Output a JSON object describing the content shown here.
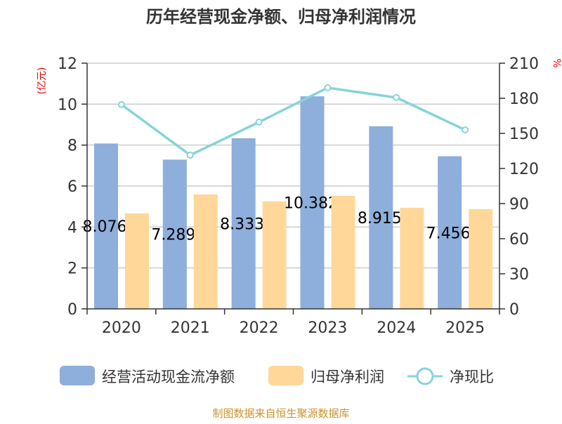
{
  "chart_data": {
    "type": "bar+line",
    "title": "历年经营现金净额、归母净利润情况",
    "ylabel_left": "(亿元)",
    "ylabel_right": "%",
    "categories": [
      "2020",
      "2021",
      "2022",
      "2023",
      "2024",
      "2025"
    ],
    "ylim_left": [
      0,
      12
    ],
    "yticks_left": [
      0,
      2,
      4,
      6,
      8,
      10,
      12
    ],
    "ylim_right": [
      0,
      210
    ],
    "yticks_right": [
      0,
      30,
      60,
      90,
      120,
      150,
      180,
      210
    ],
    "grid": true,
    "legend_position": "bottom",
    "series": [
      {
        "name": "经营活动现金流净额",
        "type": "bar",
        "axis": "left",
        "color": "#8eaedb",
        "values": [
          8.076,
          7.289,
          8.333,
          10.382,
          8.915,
          7.456
        ],
        "data_labels": [
          "8.076",
          "7.289",
          "8.333",
          "10.382",
          "8.915",
          "7.456"
        ]
      },
      {
        "name": "归母净利润",
        "type": "bar",
        "axis": "left",
        "color": "#ffd899",
        "values": [
          4.66,
          5.59,
          5.25,
          5.52,
          4.94,
          4.87
        ]
      },
      {
        "name": "净现比",
        "type": "line",
        "axis": "right",
        "color": "#86d4d8",
        "values": [
          174.6,
          131.4,
          159.6,
          189,
          180.6,
          153
        ]
      }
    ]
  },
  "source": "制图数据来自恒生聚源数据库"
}
